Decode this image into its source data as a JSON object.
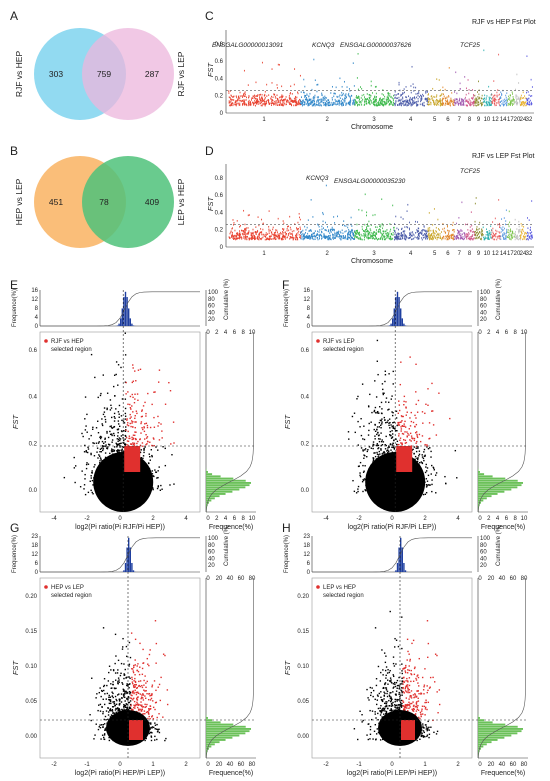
{
  "panel_labels": {
    "A": "A",
    "B": "B",
    "C": "C",
    "D": "D",
    "E": "E",
    "F": "F",
    "G": "G",
    "H": "H"
  },
  "venn_a": {
    "left_label": "RJF vs HEP",
    "right_label": "RJF vs LEP",
    "left_only": "303",
    "overlap": "759",
    "right_only": "287",
    "colors": {
      "left": "#7fd3ee",
      "right": "#ecb6dc"
    }
  },
  "venn_b": {
    "left_label": "HEP vs LEP",
    "right_label": "LEP vs HEP",
    "left_only": "451",
    "overlap": "78",
    "right_only": "409",
    "colors": {
      "left": "#f9b76a",
      "right": "#4fc27a"
    }
  },
  "manhattan_c": {
    "title": "RJF vs HEP Fst Plot",
    "ylabel": "FST",
    "xlabel": "Chromosome",
    "genes": [
      "ENSGALG00000013091",
      "KCNQ3",
      "ENSGALG00000037626",
      "TCF25"
    ]
  },
  "manhattan_d": {
    "title": "RJF vs LEP Fst Plot",
    "ylabel": "FST",
    "xlabel": "Chromosome",
    "genes": [
      "KCNQ3",
      "ENSGALG00000035230",
      "TCF25"
    ]
  },
  "manhattan_yticks": [
    "0",
    "0.2",
    "0.4",
    "0.6",
    "0.8"
  ],
  "chromosomes": [
    "1",
    "2",
    "3",
    "4",
    "5",
    "6",
    "7",
    "8",
    "9",
    "10",
    "12",
    "14",
    "17",
    "20",
    "24",
    "32"
  ],
  "chrom_colors": [
    "#e8402e",
    "#2f86c8",
    "#3bb84a",
    "#4a5aa8",
    "#c9a62a",
    "#e0882e",
    "#a05ab0",
    "#d25a8c",
    "#8c8c2e",
    "#2eb0b0",
    "#e85a5a",
    "#5a9ae0",
    "#7ac24a",
    "#c0c0c0",
    "#e8b02e",
    "#5a5ae0"
  ],
  "scatter_panels": [
    {
      "legend": "RJF vs HEP",
      "legend2": "selected region",
      "xlabel": "log2(Pi ratio(Pi RJF/Pi HEP))",
      "xticks": [
        "-4",
        "-2",
        "0",
        "2",
        "4"
      ],
      "yticks": [
        "0.0",
        "0.2",
        "0.4",
        "0.6"
      ],
      "ylabel": "FST",
      "top_yticks": [
        "0",
        "2",
        "4",
        "6",
        "8",
        "10",
        "12",
        "14",
        "16"
      ],
      "top_ylabel": "Frequence(%)",
      "right_xticks": [
        "0",
        "2",
        "4",
        "6",
        "8",
        "10"
      ],
      "right_xlabel": "Frequence(%)",
      "cum_ticks": [
        "20",
        "40",
        "60",
        "80",
        "100"
      ],
      "cum_label": "Cumulative (%)"
    },
    {
      "legend": "RJF vs LEP",
      "legend2": "selected region",
      "xlabel": "log2(Pi ratio(Pi RJF/Pi LEP))",
      "xticks": [
        "-4",
        "-2",
        "0",
        "2",
        "4"
      ],
      "yticks": [
        "0.0",
        "0.2",
        "0.4",
        "0.6"
      ],
      "ylabel": "FST",
      "top_yticks": [
        "0",
        "2",
        "4",
        "6",
        "8",
        "10",
        "12",
        "14",
        "16"
      ],
      "top_ylabel": "Frequence(%)",
      "right_xticks": [
        "0",
        "2",
        "4",
        "6",
        "8",
        "10"
      ],
      "right_xlabel": "Frequence(%)",
      "cum_ticks": [
        "20",
        "40",
        "60",
        "80",
        "100"
      ],
      "cum_label": "Cumulative (%)"
    },
    {
      "legend": "HEP vs LEP",
      "legend2": "selected region",
      "xlabel": "log2(Pi ratio(Pi HEP/Pi LEP))",
      "xticks": [
        "-2",
        "-1",
        "0",
        "1",
        "2"
      ],
      "yticks": [
        "0.00",
        "0.05",
        "0.10",
        "0.15",
        "0.20"
      ],
      "ylabel": "FST",
      "top_yticks": [
        "0",
        "3",
        "6",
        "9",
        "12",
        "15",
        "18",
        "21",
        "23"
      ],
      "top_ylabel": "Frequence(%)",
      "right_xticks": [
        "0",
        "20",
        "40",
        "60",
        "80"
      ],
      "right_xlabel": "Frequence(%)",
      "cum_ticks": [
        "20",
        "40",
        "60",
        "80",
        "100"
      ],
      "cum_label": "Cumulative (%)"
    },
    {
      "legend": "LEP vs HEP",
      "legend2": "selected region",
      "xlabel": "log2(Pi ratio(Pi LEP/Pi HEP))",
      "xticks": [
        "-2",
        "-1",
        "0",
        "1",
        "2"
      ],
      "yticks": [
        "0.00",
        "0.05",
        "0.10",
        "0.15",
        "0.20"
      ],
      "ylabel": "FST",
      "top_yticks": [
        "0",
        "3",
        "6",
        "9",
        "12",
        "15",
        "18",
        "21",
        "23"
      ],
      "top_ylabel": "Frequence(%)",
      "right_xticks": [
        "0",
        "20",
        "40",
        "60",
        "80"
      ],
      "right_xlabel": "Frequence(%)",
      "cum_ticks": [
        "20",
        "40",
        "60",
        "80",
        "100"
      ],
      "cum_label": "Cumulative (%)"
    }
  ]
}
